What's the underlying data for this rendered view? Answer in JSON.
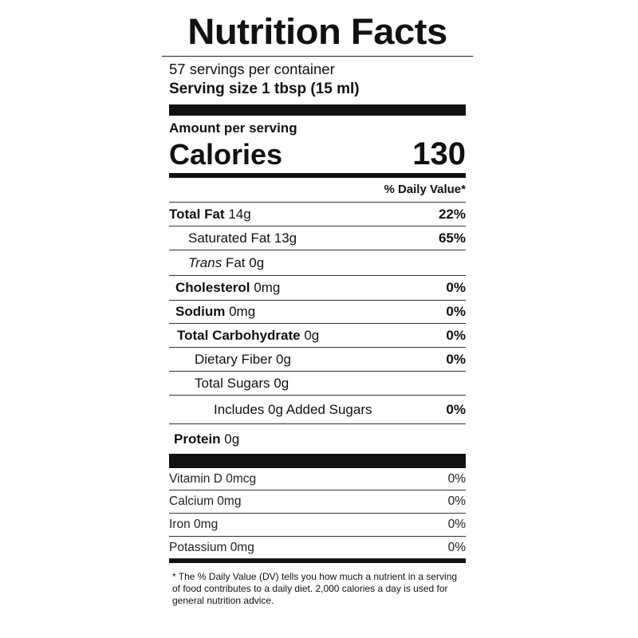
{
  "title": "Nutrition Facts",
  "servings": "57 servings per container",
  "serving_size": "Serving size 1 tbsp  (15 ml)",
  "amount_per_serving": "Amount per serving",
  "calories": {
    "label": "Calories",
    "value": "130"
  },
  "dv_header": "% Daily Value*",
  "nutrients": [
    {
      "name": "Total Fat",
      "amount": "14g",
      "dv": "22%"
    },
    {
      "name": "Saturated Fat",
      "amount": "13g",
      "dv": "65%"
    },
    {
      "prefix": "Trans",
      "name": "Fat",
      "amount": "0g"
    },
    {
      "name": "Cholesterol",
      "amount": "0mg",
      "dv": "0%"
    },
    {
      "name": "Sodium",
      "amount": "0mg",
      "dv": "0%"
    },
    {
      "name": "Total Carbohydrate",
      "amount": "0g",
      "dv": "0%"
    },
    {
      "name": "Dietary Fiber",
      "amount": "0g",
      "dv": "0%"
    },
    {
      "name": "Total Sugars",
      "amount": "0g"
    },
    {
      "name": "Includes 0g Added Sugars",
      "dv": "0%"
    },
    {
      "name": "Protein",
      "amount": "0g"
    }
  ],
  "vitamins": [
    {
      "name": "Vitamin D",
      "amount": "0mcg",
      "dv": "0%"
    },
    {
      "name": "Calcium",
      "amount": "0mg",
      "dv": "0%"
    },
    {
      "name": "Iron",
      "amount": "0mg",
      "dv": "0%"
    },
    {
      "name": "Potassium",
      "amount": "0mg",
      "dv": "0%"
    }
  ],
  "footnote": "* The % Daily Value (DV) tells you how much a nutrient in a serving of food contributes to a daily diet. 2,000 calories a day is used for general nutrition advice."
}
